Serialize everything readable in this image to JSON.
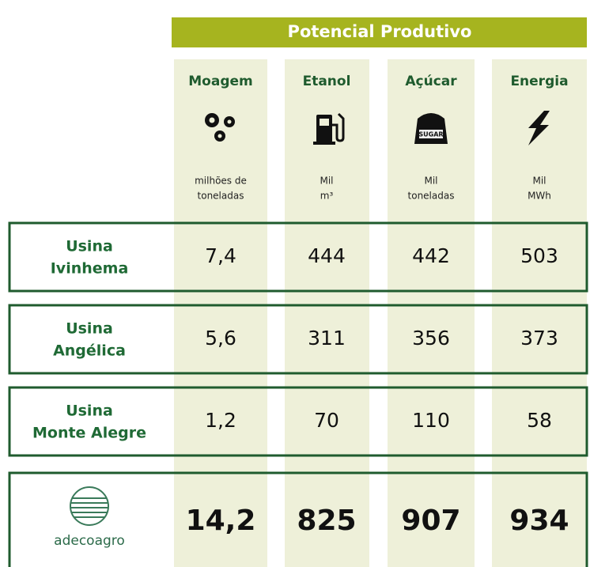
{
  "header": {
    "title": "Potencial Produtivo"
  },
  "columns": [
    {
      "name": "Moagem",
      "unit": [
        "milhões de",
        "toneladas"
      ]
    },
    {
      "name": "Etanol",
      "unit": [
        "Mil",
        "m³"
      ]
    },
    {
      "name": "Açúcar",
      "unit": [
        "Mil",
        "toneladas"
      ],
      "icon_text": "SUGAR"
    },
    {
      "name": "Energia",
      "unit": [
        "Mil",
        "MWh"
      ]
    }
  ],
  "rows": [
    {
      "label": [
        "Usina",
        "Ivinhema"
      ],
      "values": [
        "7,4",
        "444",
        "442",
        "503"
      ]
    },
    {
      "label": [
        "Usina",
        "Angélica"
      ],
      "values": [
        "5,6",
        "311",
        "356",
        "373"
      ]
    },
    {
      "label": [
        "Usina",
        "Monte Alegre"
      ],
      "values": [
        "1,2",
        "70",
        "110",
        "58"
      ]
    }
  ],
  "total": {
    "logo_text": "adecoagro",
    "values": [
      "14,2",
      "825",
      "907",
      "934"
    ]
  }
}
